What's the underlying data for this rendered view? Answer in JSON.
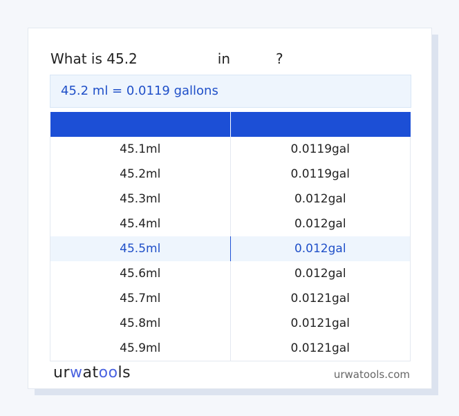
{
  "title": {
    "prefix": "What is 45.2",
    "middle": "in",
    "suffix": "?"
  },
  "result": "45.2 ml = 0.0119 gallons",
  "table": {
    "headers": [
      "",
      ""
    ],
    "highlight_index": 4,
    "rows": [
      [
        "45.1ml",
        "0.0119gal"
      ],
      [
        "45.2ml",
        "0.0119gal"
      ],
      [
        "45.3ml",
        "0.012gal"
      ],
      [
        "45.4ml",
        "0.012gal"
      ],
      [
        "45.5ml",
        "0.012gal"
      ],
      [
        "45.6ml",
        "0.012gal"
      ],
      [
        "45.7ml",
        "0.0121gal"
      ],
      [
        "45.8ml",
        "0.0121gal"
      ],
      [
        "45.9ml",
        "0.0121gal"
      ]
    ]
  },
  "footer": {
    "logo": "urwatools",
    "site": "urwatools.com"
  },
  "colors": {
    "accent": "#1c4fd6",
    "highlight_bg": "#eef5fd"
  }
}
